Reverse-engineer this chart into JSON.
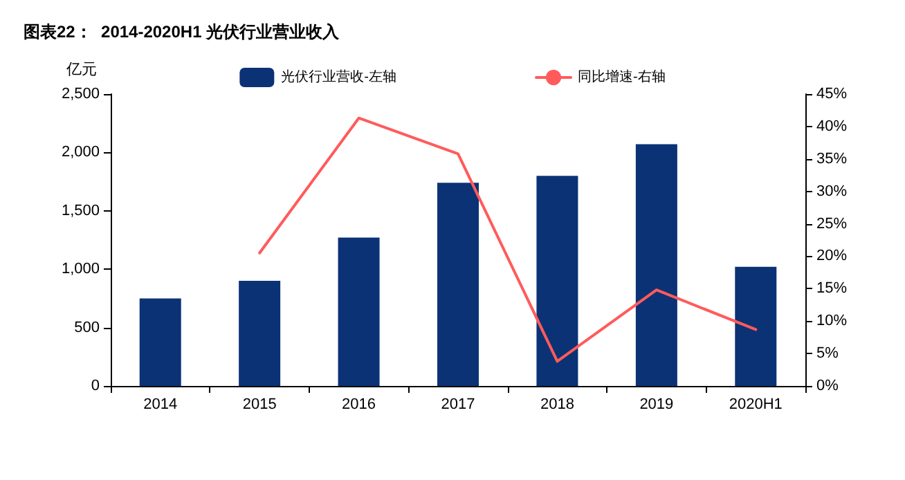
{
  "chart_data": {
    "type": "bar",
    "title": "图表22：  2014-2020H1 光伏行业营业收入",
    "ylabel": "亿元",
    "categories": [
      "2014",
      "2015",
      "2016",
      "2017",
      "2018",
      "2019",
      "2020H1"
    ],
    "series": [
      {
        "name": "光伏行业营收-左轴",
        "color": "#0b3275",
        "values": [
          750,
          900,
          1270,
          1740,
          1800,
          2070,
          1020
        ]
      },
      {
        "name": "同比增速-右轴",
        "type": "line",
        "axis": "y2",
        "color": "#ff5b5b",
        "values": [
          null,
          20.5,
          41.3,
          35.8,
          3.8,
          14.8,
          8.7
        ]
      }
    ],
    "ylim": [
      0,
      2500
    ],
    "yticks": [
      0,
      {
        "value": 500,
        "label": "500"
      },
      {
        "value": 1000,
        "label": "1,000"
      },
      {
        "value": 1500,
        "label": "1,500"
      },
      {
        "value": 2000,
        "label": "2,000"
      },
      {
        "value": 2500,
        "label": "2,500"
      }
    ],
    "y2lim": [
      0,
      45
    ],
    "y2ticks": [
      {
        "value": 0,
        "label": "0%"
      },
      {
        "value": 5,
        "label": "5%"
      },
      {
        "value": 10,
        "label": "10%"
      },
      {
        "value": 15,
        "label": "15%"
      },
      {
        "value": 20,
        "label": "20%"
      },
      {
        "value": 25,
        "label": "25%"
      },
      {
        "value": 30,
        "label": "30%"
      },
      {
        "value": 35,
        "label": "35%"
      },
      {
        "value": 40,
        "label": "40%"
      },
      {
        "value": 45,
        "label": "45%"
      }
    ],
    "grid": false,
    "legend": "top",
    "marker": "none",
    "line_style": "solid"
  }
}
